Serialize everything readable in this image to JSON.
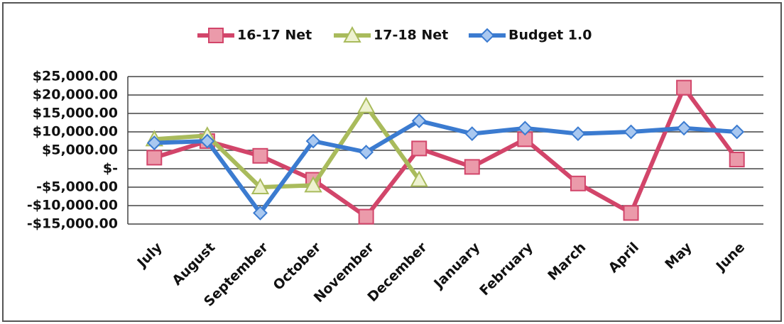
{
  "chart_data": {
    "type": "line",
    "categories": [
      "July",
      "August",
      "September",
      "October",
      "November",
      "December",
      "January",
      "February",
      "March",
      "April",
      "May",
      "June"
    ],
    "series": [
      {
        "name": "16-17 Net",
        "color": "#d2456a",
        "marker": "square",
        "values": [
          3000,
          7500,
          3500,
          -3000,
          -13000,
          5500,
          500,
          8000,
          -4000,
          -12000,
          22000,
          2500
        ]
      },
      {
        "name": "17-18 Net",
        "color": "#a9bb5c",
        "marker": "triangle",
        "values": [
          8000,
          9000,
          -5000,
          -4500,
          17000,
          -3000,
          null,
          null,
          null,
          null,
          null,
          null
        ]
      },
      {
        "name": "Budget 1.0",
        "color": "#3b7bd0",
        "marker": "diamond",
        "values": [
          7000,
          7500,
          -12000,
          7500,
          4500,
          13000,
          9500,
          11000,
          9500,
          10000,
          11000,
          10000
        ]
      }
    ],
    "ylim": [
      -15000,
      25000
    ],
    "yticks": [
      {
        "value": -15000,
        "label": "-$15,000.00"
      },
      {
        "value": -10000,
        "label": "-$10,000.00"
      },
      {
        "value": -5000,
        "label": "-$5,000.00"
      },
      {
        "value": 0,
        "label": "$-"
      },
      {
        "value": 5000,
        "label": "$5,000.00"
      },
      {
        "value": 10000,
        "label": "$10,000.00"
      },
      {
        "value": 15000,
        "label": "$15,000.00"
      },
      {
        "value": 20000,
        "label": "$20,000.00"
      },
      {
        "value": 25000,
        "label": "$25,000.00"
      }
    ],
    "grid": true,
    "legend": "top"
  }
}
